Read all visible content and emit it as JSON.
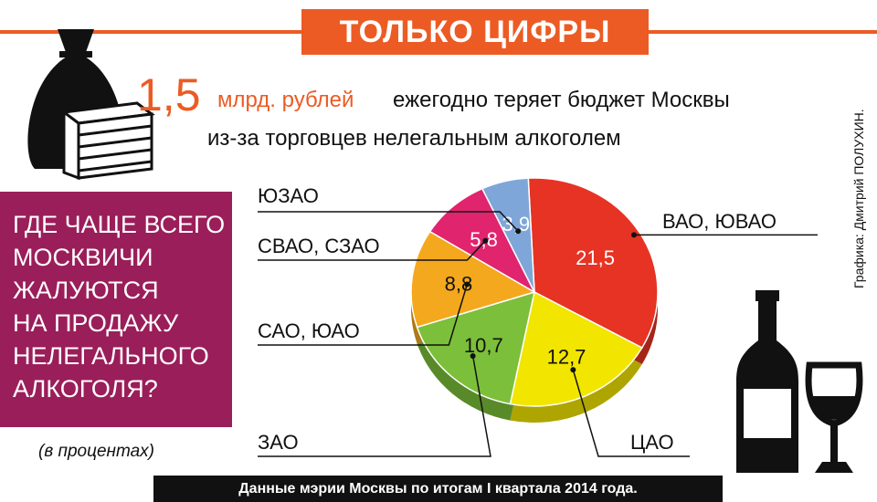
{
  "header": {
    "title": "ТОЛЬКО ЦИФРЫ"
  },
  "headline": {
    "number": "1,5",
    "unit": "млрд. рублей",
    "rest": "ежегодно теряет бюджет Москвы",
    "line2": "из-за торговцев нелегальным алкоголем"
  },
  "question_lines": [
    "ГДЕ ЧАЩЕ ВСЕГО",
    "МОСКВИЧИ",
    "ЖАЛУЮТСЯ",
    "НА ПРОДАЖУ",
    "НЕЛЕГАЛЬНОГО",
    "АЛКОГОЛЯ?"
  ],
  "units_note": "(в процентах)",
  "credit": "Графика: Дмитрий ПОЛУХИН.",
  "footer": "Данные мэрии Москвы по итогам I квартала 2014 года.",
  "icons": [
    "money-bag-icon",
    "banknote-stack-icon",
    "wine-bottle-icon",
    "wine-glass-icon"
  ],
  "colors": {
    "accent": "#ec5b24",
    "question_box": "#9a1e5a",
    "footer_bar": "#111111"
  },
  "chart_data": {
    "type": "pie",
    "title": "",
    "slices": [
      {
        "name": "ВАО, ЮВАО",
        "value": 21.5,
        "label": "21,5",
        "color": "#e63323"
      },
      {
        "name": "ЦАО",
        "value": 12.7,
        "label": "12,7",
        "color": "#f2e500"
      },
      {
        "name": "ЗАО",
        "value": 10.7,
        "label": "10,7",
        "color": "#7cbf3a"
      },
      {
        "name": "САО, ЮАО",
        "value": 8.8,
        "label": "8,8",
        "color": "#f4a81d"
      },
      {
        "name": "СВАО, СЗАО",
        "value": 5.8,
        "label": "5,8",
        "color": "#e1246e"
      },
      {
        "name": "ЮЗАО",
        "value": 3.9,
        "label": "3,9",
        "color": "#7ea6d8"
      }
    ]
  }
}
